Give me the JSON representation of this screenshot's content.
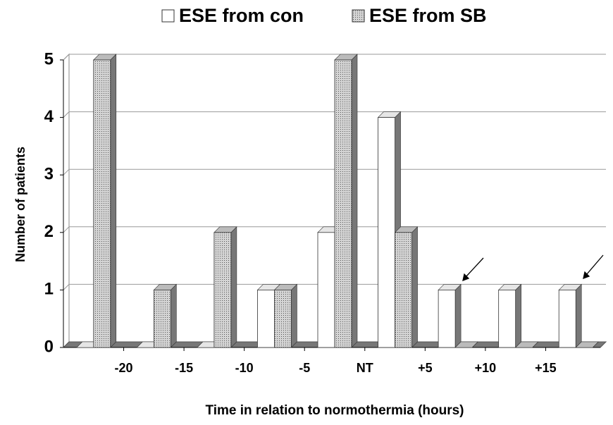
{
  "chart_data": {
    "type": "bar3d",
    "xlabel": "Time in relation to normothermia (hours)",
    "ylabel": "Number of patients",
    "x": [
      -22.5,
      -17.5,
      -12.5,
      -7.5,
      -2.5,
      2.5,
      7.5,
      12.5,
      17.5
    ],
    "series": [
      {
        "name": "ESE from con",
        "color": "#ffffff",
        "values": [
          0,
          0,
          0,
          1,
          2,
          4,
          1,
          1,
          1
        ]
      },
      {
        "name": "ESE from SB",
        "color": "#d4d4d4",
        "values": [
          5,
          1,
          2,
          1,
          5,
          2,
          0,
          0,
          0
        ]
      }
    ],
    "xlim": [
      -25,
      20
    ],
    "xticks": [
      -20,
      -15,
      -10,
      -5,
      {
        "value": 0,
        "label": "NT"
      },
      {
        "value": 5,
        "label": "+5"
      },
      {
        "value": 10,
        "label": "+10"
      },
      {
        "value": 15,
        "label": "+15"
      }
    ],
    "ylim": [
      0,
      5
    ],
    "yticks": [
      0,
      1,
      2,
      3,
      4,
      5
    ],
    "grid": true,
    "legend": "top"
  }
}
